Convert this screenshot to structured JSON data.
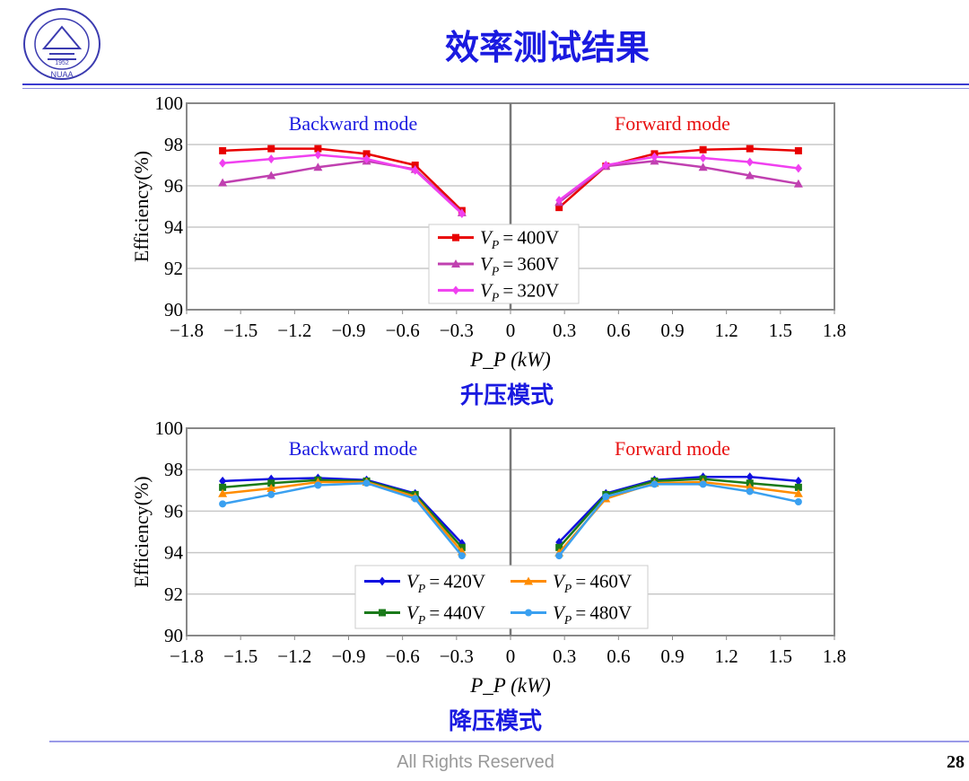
{
  "header": {
    "title": "效率测试结果",
    "logo_text": "NUAA 1952",
    "logo_color": "#3b3bb0"
  },
  "captions": [
    "升压模式",
    "降压模式"
  ],
  "footer": {
    "text": "All Rights Reserved",
    "page": "28"
  },
  "chart_data": [
    {
      "type": "line",
      "xlabel": "P_P (kW)",
      "ylabel": "Efficiency(%)",
      "xlim": [
        -1.8,
        1.8
      ],
      "ylim": [
        90,
        100
      ],
      "xticks": [
        "−1.8",
        "−1.5",
        "−1.2",
        "−0.9",
        "−0.6",
        "−0.3",
        "0",
        "0.3",
        "0.6",
        "0.9",
        "1.2",
        "1.5",
        "1.8"
      ],
      "yticks": [
        "90",
        "92",
        "94",
        "96",
        "98",
        "100"
      ],
      "grid": "horizontal",
      "legend": "center",
      "annotations": [
        {
          "text": "Backward mode",
          "color": "#1a1ae0"
        },
        {
          "text": "Forward mode",
          "color": "#e81010"
        }
      ],
      "x": [
        -1.6,
        -1.33,
        -1.07,
        -0.8,
        -0.53,
        -0.27,
        0.27,
        0.53,
        0.8,
        1.07,
        1.33,
        1.6
      ],
      "series": [
        {
          "name": "V_P = 400V",
          "color": "#e80000",
          "marker": "square",
          "values": [
            97.7,
            97.8,
            97.8,
            97.55,
            97.0,
            94.8,
            94.95,
            96.95,
            97.55,
            97.75,
            97.8,
            97.7
          ]
        },
        {
          "name": "V_P = 360V",
          "color": "#c040b0",
          "marker": "triangle",
          "values": [
            96.15,
            96.5,
            96.9,
            97.2,
            96.8,
            94.7,
            95.2,
            96.95,
            97.2,
            96.9,
            96.5,
            96.1
          ]
        },
        {
          "name": "V_P = 320V",
          "color": "#f040f0",
          "marker": "diamond",
          "values": [
            97.1,
            97.3,
            97.5,
            97.3,
            96.75,
            94.65,
            95.3,
            97.0,
            97.4,
            97.35,
            97.15,
            96.85
          ]
        }
      ]
    },
    {
      "type": "line",
      "xlabel": "P_P (kW)",
      "ylabel": "Efficiency(%)",
      "xlim": [
        -1.8,
        1.8
      ],
      "ylim": [
        90,
        100
      ],
      "xticks": [
        "−1.8",
        "−1.5",
        "−1.2",
        "−0.9",
        "−0.6",
        "−0.3",
        "0",
        "0.3",
        "0.6",
        "0.9",
        "1.2",
        "1.5",
        "1.8"
      ],
      "yticks": [
        "90",
        "92",
        "94",
        "96",
        "98",
        "100"
      ],
      "grid": "horizontal",
      "legend": "center",
      "annotations": [
        {
          "text": "Backward mode",
          "color": "#1a1ae0"
        },
        {
          "text": "Forward mode",
          "color": "#e81010"
        }
      ],
      "x": [
        -1.6,
        -1.33,
        -1.07,
        -0.8,
        -0.53,
        -0.27,
        0.27,
        0.53,
        0.8,
        1.07,
        1.33,
        1.6
      ],
      "series": [
        {
          "name": "V_P = 420V",
          "color": "#1010e0",
          "marker": "diamond",
          "values": [
            97.45,
            97.55,
            97.6,
            97.5,
            96.85,
            94.45,
            94.5,
            96.85,
            97.5,
            97.65,
            97.65,
            97.45
          ]
        },
        {
          "name": "V_P = 440V",
          "color": "#1a7a1a",
          "marker": "square",
          "values": [
            97.15,
            97.35,
            97.5,
            97.45,
            96.8,
            94.25,
            94.25,
            96.8,
            97.45,
            97.55,
            97.35,
            97.15
          ]
        },
        {
          "name": "V_P = 460V",
          "color": "#ff8c00",
          "marker": "triangle",
          "values": [
            96.85,
            97.1,
            97.4,
            97.4,
            96.7,
            94.05,
            94.0,
            96.6,
            97.35,
            97.4,
            97.15,
            96.85
          ]
        },
        {
          "name": "V_P = 480V",
          "color": "#3aa0f0",
          "marker": "circle",
          "values": [
            96.35,
            96.8,
            97.25,
            97.35,
            96.6,
            93.85,
            93.85,
            96.7,
            97.3,
            97.3,
            96.95,
            96.45
          ]
        }
      ]
    }
  ]
}
